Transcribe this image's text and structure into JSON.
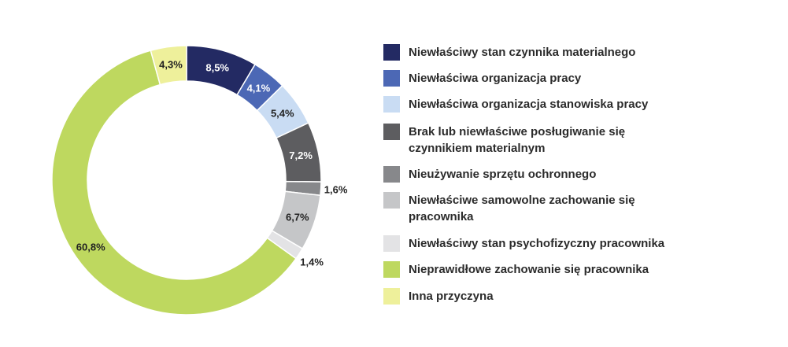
{
  "chart_data": {
    "type": "pie",
    "donut": true,
    "unit": "%",
    "categories": [
      "Niewłaściwy stan czynnika materialnego",
      "Niewłaściwa organizacja pracy",
      "Niewłaściwa organizacja stanowiska pracy",
      "Brak lub niewłaściwe posługiwanie się czynnikiem materialnym",
      "Nieużywanie sprzętu ochronnego",
      "Niewłaściwe samowolne zachowanie się pracownika",
      "Niewłaściwy stan psychofizyczny pracownika",
      "Nieprawidłowe zachowanie się pracownika",
      "Inna przyczyna"
    ],
    "values": [
      8.5,
      4.1,
      5.4,
      7.2,
      1.6,
      6.7,
      1.4,
      60.8,
      4.3
    ],
    "value_labels": [
      "8,5%",
      "4,1%",
      "5,4%",
      "7,2%",
      "1,6%",
      "6,7%",
      "1,4%",
      "60,8%",
      "4,3%"
    ],
    "colors": [
      "#232a63",
      "#4c68b5",
      "#c9dcf3",
      "#5d5d60",
      "#87888b",
      "#c5c6c8",
      "#e3e3e5",
      "#bed85f",
      "#eef09b"
    ],
    "legend_placement": "right"
  },
  "legend": {
    "items": [
      {
        "lines": [
          "Niewłaściwy stan czynnika materialnego"
        ]
      },
      {
        "lines": [
          "Niewłaściwa organizacja pracy"
        ]
      },
      {
        "lines": [
          "Niewłaściwa organizacja stanowiska pracy"
        ]
      },
      {
        "lines": [
          "Brak lub niewłaściwe posługiwanie się",
          "czynnikiem materialnym"
        ]
      },
      {
        "lines": [
          "Nieużywanie sprzętu ochronnego"
        ]
      },
      {
        "lines": [
          "Niewłaściwe samowolne zachowanie się",
          "pracownika"
        ]
      },
      {
        "lines": [
          "Niewłaściwy stan psychofizyczny pracownika"
        ]
      },
      {
        "lines": [
          "Nieprawidłowe zachowanie się pracownika"
        ]
      },
      {
        "lines": [
          "Inna przyczyna"
        ]
      }
    ]
  }
}
